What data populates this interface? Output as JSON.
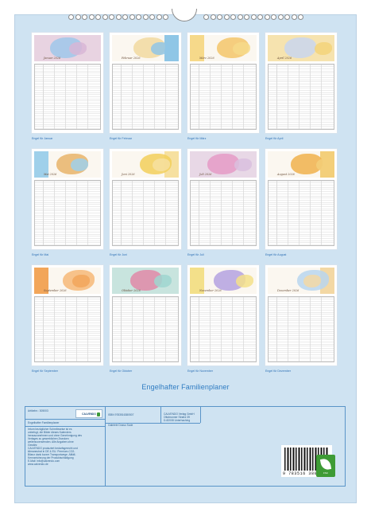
{
  "colors": {
    "background": "#cfe3f2",
    "accent": "#2f7cc2",
    "fsc_green": "#3e9b35"
  },
  "months": [
    {
      "name": "Januar",
      "sheet_label": "Januar 2026",
      "caption": "Engel für Januar",
      "band": "#d8b6d6",
      "angel": "#9fc7ea"
    },
    {
      "name": "Februar",
      "sheet_label": "Februar 2026",
      "caption": "Engel für Februar",
      "band": "#8fc6e6",
      "angel": "#f1d9a0"
    },
    {
      "name": "März",
      "sheet_label": "März 2026",
      "caption": "Engel für März",
      "band": "#f6d98a",
      "angel": "#f3c56a"
    },
    {
      "name": "April",
      "sheet_label": "April 2026",
      "caption": "Engel für April",
      "band": "#f3d47a",
      "angel": "#c9d6ee"
    },
    {
      "name": "Mai",
      "sheet_label": "Mai 2026",
      "caption": "Engel für Mai",
      "band": "#9fd0ea",
      "angel": "#e8b46a"
    },
    {
      "name": "Juni",
      "sheet_label": "Juni 2026",
      "caption": "Engel für Juni",
      "band": "#f6e0a0",
      "angel": "#f2cf5a"
    },
    {
      "name": "Juli",
      "sheet_label": "Juli 2026",
      "caption": "Engel für Juli",
      "band": "#d9c0de",
      "angel": "#e59bc5"
    },
    {
      "name": "August",
      "sheet_label": "August 2026",
      "caption": "Engel für August",
      "band": "#f3cf7a",
      "angel": "#f0b24c"
    },
    {
      "name": "September",
      "sheet_label": "September 2026",
      "caption": "Engel für September",
      "band": "#f2a65a",
      "angel": "#f6b978"
    },
    {
      "name": "Oktober",
      "sheet_label": "Oktober 2026",
      "caption": "Engel für Oktober",
      "band": "#9fd6d0",
      "angel": "#e08aa8"
    },
    {
      "name": "November",
      "sheet_label": "November 2026",
      "caption": "Engel für November",
      "band": "#f3e08a",
      "angel": "#b4a2e0"
    },
    {
      "name": "Dezember",
      "sheet_label": "Dezember 2026",
      "caption": "Engel für Dezember",
      "band": "#f3d8a4",
      "angel": "#b8d6ee"
    }
  ],
  "title": "Engelhafter Familienplaner",
  "info": {
    "article_label": "Artikelnr.: 305003",
    "product_name": "Engelhafter Familienplaner",
    "logo_text": "CALVENDO",
    "isbn": "ISBN 9783516380507",
    "publisher_lines": [
      "CALVENDO Verlag GmbH",
      "Ottobrunner Straße 39",
      "D-82008 Unterhaching"
    ],
    "author": "Gabriele Dosso Sode",
    "notes": [
      "Irrtum bezüglicher Schreibweise ist es",
      "unbefugt, die Bilder dieses Kalenders",
      "herauszunehmen und ohne Genehmigung des",
      "Verlages zu gewerblichen Zwecken",
      "weiterzuverwenden. Alle Angaben ohne",
      "Gewähr.",
      "CALVENDO produziert bedarfsgerecht und",
      "klimaneutral in DE & EU. Premium-CO2-",
      "Bilanz dank kurzer Transportwege. Alltäll-",
      "Kennzeichnung der Produktschädigung",
      "E-Mail: info@calvendo.com",
      "www.calvendo.de"
    ],
    "barcode_number": "9 783516 380507",
    "fsc_label": "FSC"
  }
}
